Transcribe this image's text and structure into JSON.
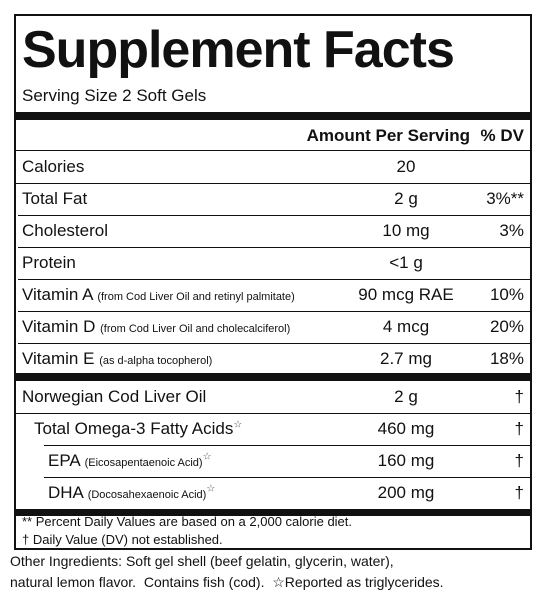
{
  "header": {
    "title": "Supplement Facts",
    "serving_size": "Serving Size 2 Soft Gels"
  },
  "table": {
    "columns": {
      "amount": "Amount Per Serving",
      "dv": "% DV"
    },
    "sections": [
      {
        "rows": [
          {
            "name": "Calories",
            "amount": "20"
          },
          {
            "name": "Total Fat",
            "amount": "2 g",
            "dv": "3%**"
          },
          {
            "name": "Cholesterol",
            "amount": "10 mg",
            "dv": "3%"
          },
          {
            "name": "Protein",
            "amount": "<1 g"
          },
          {
            "name": "Vitamin A",
            "note": "(from Cod Liver Oil and retinyl palmitate)",
            "amount": "90 mcg RAE",
            "dv": "10%"
          },
          {
            "name": "Vitamin D",
            "note": "(from Cod Liver Oil and cholecalciferol)",
            "amount": "4 mcg",
            "dv": "20%"
          },
          {
            "name": "Vitamin E",
            "note": "(as d-alpha tocopherol)",
            "amount": "2.7 mg",
            "dv": "18%"
          }
        ]
      },
      {
        "rows": [
          {
            "name": "Norwegian Cod Liver Oil",
            "amount": "2 g",
            "dv": "†"
          },
          {
            "name": "Total Omega-3 Fatty Acids",
            "mark": "☆",
            "amount": "460 mg",
            "dv": "†"
          },
          {
            "name": "EPA",
            "note": "(Eicosapentaenoic Acid)",
            "mark": "☆",
            "amount": "160 mg",
            "dv": "†"
          },
          {
            "name": "DHA",
            "note": "(Docosahexaenoic Acid)",
            "mark": "☆",
            "amount": "200 mg",
            "dv": "†"
          }
        ]
      }
    ]
  },
  "footnotes": [
    "** Percent Daily Values are based on a 2,000 calorie diet.",
    "† Daily Value (DV) not established."
  ],
  "ingredients": {
    "lines": [
      "Other Ingredients: Soft gel shell (beef gelatin, glycerin, water),",
      "natural lemon flavor.  Contains fish (cod)."
    ],
    "triglyceride_note": "☆Reported as triglycerides."
  }
}
